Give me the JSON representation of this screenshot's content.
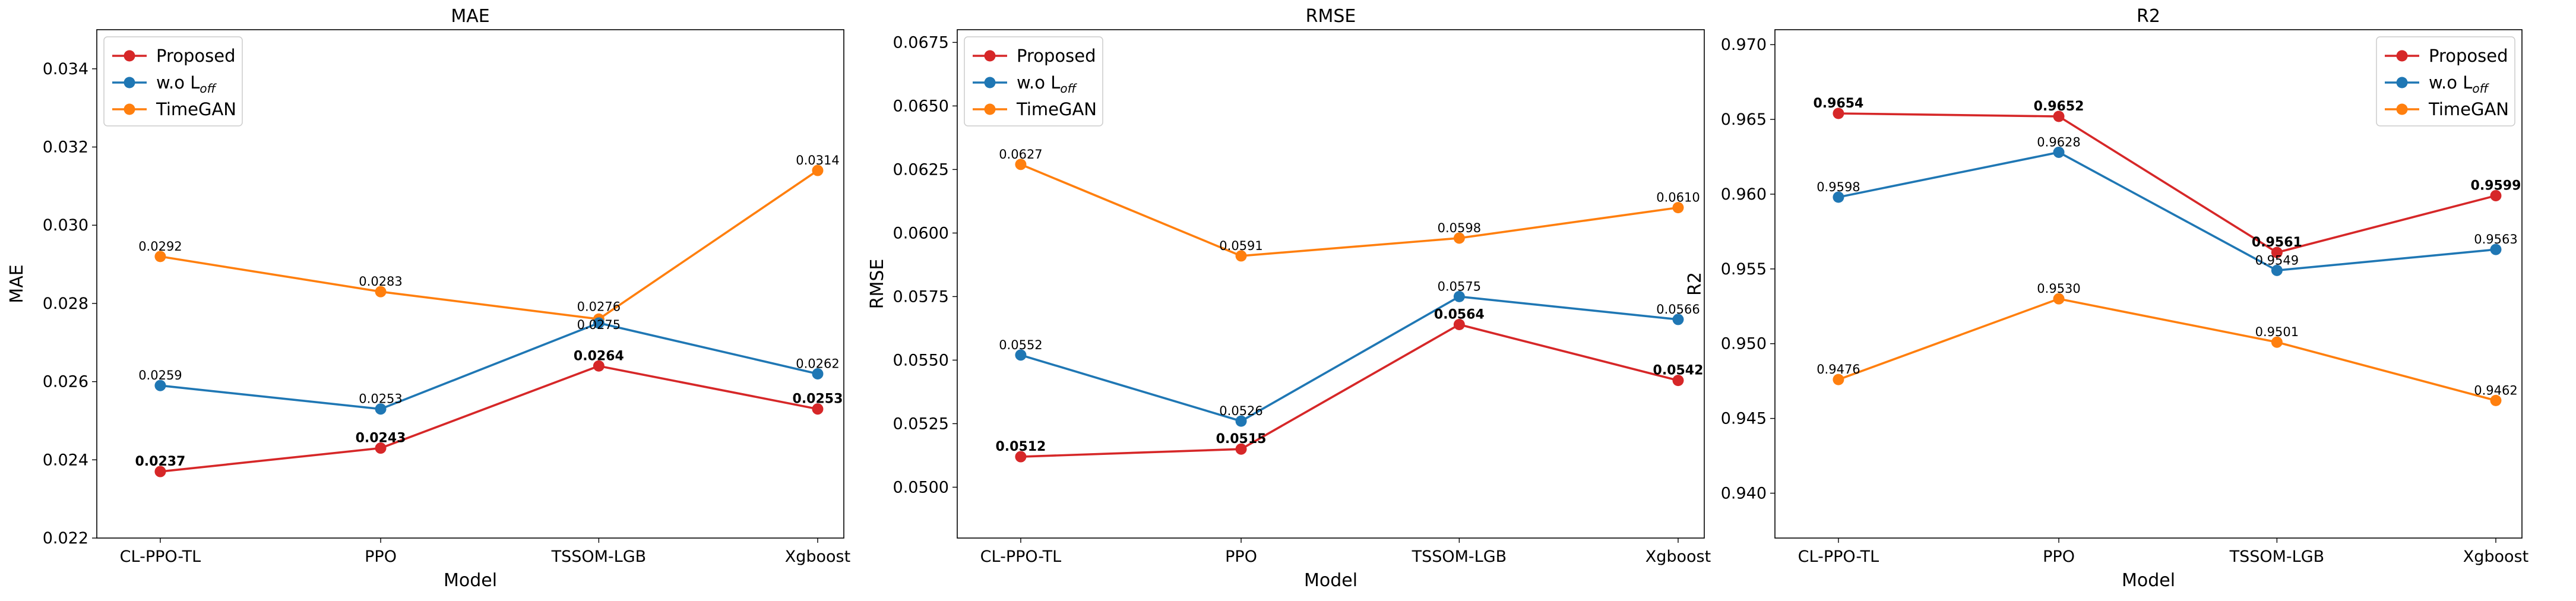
{
  "chart_data": [
    {
      "type": "line",
      "title": "MAE",
      "xlabel": "Model",
      "ylabel": "MAE",
      "categories": [
        "CL-PPO-TL",
        "PPO",
        "TSSOM-LGB",
        "Xgboost"
      ],
      "ylim": [
        0.022,
        0.035
      ],
      "yticks": [
        0.022,
        0.024,
        0.026,
        0.028,
        0.03,
        0.032,
        0.034
      ],
      "ytick_labels": [
        "0.022",
        "0.024",
        "0.026",
        "0.028",
        "0.030",
        "0.032",
        "0.034"
      ],
      "legend_position": "top-left",
      "series": [
        {
          "name": "Proposed",
          "name_main": "Proposed",
          "name_sub": "",
          "color": "#d62728",
          "values": [
            0.0237,
            0.0243,
            0.0264,
            0.0253
          ],
          "labels": [
            "0.0237",
            "0.0243",
            "0.0264",
            "0.0253"
          ],
          "bold": true
        },
        {
          "name": "w.o L_off",
          "name_main": "w.o L",
          "name_sub": "off",
          "color": "#1f77b4",
          "values": [
            0.0259,
            0.0253,
            0.0275,
            0.0262
          ],
          "labels": [
            "0.0259",
            "0.0253",
            "0.0275",
            "0.0262"
          ],
          "bold": false
        },
        {
          "name": "TimeGAN",
          "name_main": "TimeGAN",
          "name_sub": "",
          "color": "#ff7f0e",
          "values": [
            0.0292,
            0.0283,
            0.0276,
            0.0314
          ],
          "labels": [
            "0.0292",
            "0.0283",
            "0.0276",
            "0.0314"
          ],
          "bold": false
        }
      ]
    },
    {
      "type": "line",
      "title": "RMSE",
      "xlabel": "Model",
      "ylabel": "RMSE",
      "categories": [
        "CL-PPO-TL",
        "PPO",
        "TSSOM-LGB",
        "Xgboost"
      ],
      "ylim": [
        0.048,
        0.068
      ],
      "yticks": [
        0.05,
        0.0525,
        0.055,
        0.0575,
        0.06,
        0.0625,
        0.065,
        0.0675
      ],
      "ytick_labels": [
        "0.0500",
        "0.0525",
        "0.0550",
        "0.0575",
        "0.0600",
        "0.0625",
        "0.0650",
        "0.0675"
      ],
      "legend_position": "top-left",
      "series": [
        {
          "name": "Proposed",
          "name_main": "Proposed",
          "name_sub": "",
          "color": "#d62728",
          "values": [
            0.0512,
            0.0515,
            0.0564,
            0.0542
          ],
          "labels": [
            "0.0512",
            "0.0515",
            "0.0564",
            "0.0542"
          ],
          "bold": true
        },
        {
          "name": "w.o L_off",
          "name_main": "w.o L",
          "name_sub": "off",
          "color": "#1f77b4",
          "values": [
            0.0552,
            0.0526,
            0.0575,
            0.0566
          ],
          "labels": [
            "0.0552",
            "0.0526",
            "0.0575",
            "0.0566"
          ],
          "bold": false
        },
        {
          "name": "TimeGAN",
          "name_main": "TimeGAN",
          "name_sub": "",
          "color": "#ff7f0e",
          "values": [
            0.0627,
            0.0591,
            0.0598,
            0.061
          ],
          "labels": [
            "0.0627",
            "0.0591",
            "0.0598",
            "0.0610"
          ],
          "bold": false
        }
      ]
    },
    {
      "type": "line",
      "title": "R2",
      "xlabel": "Model",
      "ylabel": "R2",
      "categories": [
        "CL-PPO-TL",
        "PPO",
        "TSSOM-LGB",
        "Xgboost"
      ],
      "ylim": [
        0.937,
        0.971
      ],
      "yticks": [
        0.94,
        0.945,
        0.95,
        0.955,
        0.96,
        0.965,
        0.97
      ],
      "ytick_labels": [
        "0.940",
        "0.945",
        "0.950",
        "0.955",
        "0.960",
        "0.965",
        "0.970"
      ],
      "legend_position": "top-right",
      "series": [
        {
          "name": "Proposed",
          "name_main": "Proposed",
          "name_sub": "",
          "color": "#d62728",
          "values": [
            0.9654,
            0.9652,
            0.9561,
            0.9599
          ],
          "labels": [
            "0.9654",
            "0.9652",
            "0.9561",
            "0.9599"
          ],
          "bold": true
        },
        {
          "name": "w.o L_off",
          "name_main": "w.o L",
          "name_sub": "off",
          "color": "#1f77b4",
          "values": [
            0.9598,
            0.9628,
            0.9549,
            0.9563
          ],
          "labels": [
            "0.9598",
            "0.9628",
            "0.9549",
            "0.9563"
          ],
          "bold": false
        },
        {
          "name": "TimeGAN",
          "name_main": "TimeGAN",
          "name_sub": "",
          "color": "#ff7f0e",
          "values": [
            0.9476,
            0.953,
            0.9501,
            0.9462
          ],
          "labels": [
            "0.9476",
            "0.9530",
            "0.9501",
            "0.9462"
          ],
          "bold": false
        }
      ]
    }
  ]
}
